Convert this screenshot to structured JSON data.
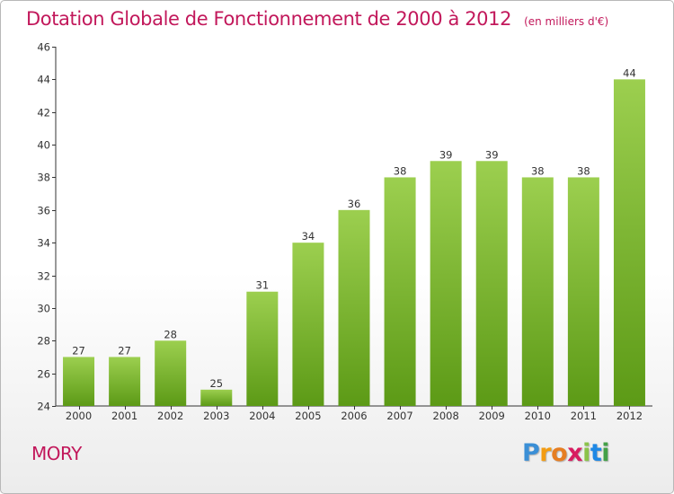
{
  "header": {
    "title": "Dotation Globale de Fonctionnement de 2000 à 2012",
    "unit": "(en milliers d'€)"
  },
  "footer": {
    "commune": "MORY",
    "logo_letters": [
      "P",
      "r",
      "o",
      "x",
      "i",
      "t",
      "i"
    ],
    "logo_colors": [
      "#3b8fd6",
      "#f39c12",
      "#e67e22",
      "#d81b60",
      "#8bc34a",
      "#1e88e5",
      "#43a047"
    ]
  },
  "colors": {
    "title": "#c2185b",
    "bar_light": "#9ccf4f",
    "bar_dark": "#5c9a16",
    "axis": "#333333"
  },
  "chart_data": {
    "type": "bar",
    "title": "Dotation Globale de Fonctionnement de 2000 à 2012",
    "xlabel": "",
    "ylabel": "",
    "categories": [
      "2000",
      "2001",
      "2002",
      "2003",
      "2004",
      "2005",
      "2006",
      "2007",
      "2008",
      "2009",
      "2010",
      "2011",
      "2012"
    ],
    "values": [
      27,
      27,
      28,
      25,
      31,
      34,
      36,
      38,
      39,
      39,
      38,
      38,
      44
    ],
    "ylim": [
      24,
      46
    ],
    "yticks": [
      24,
      26,
      28,
      30,
      32,
      34,
      36,
      38,
      40,
      42,
      44,
      46
    ],
    "grid": false,
    "data_labels": true
  }
}
